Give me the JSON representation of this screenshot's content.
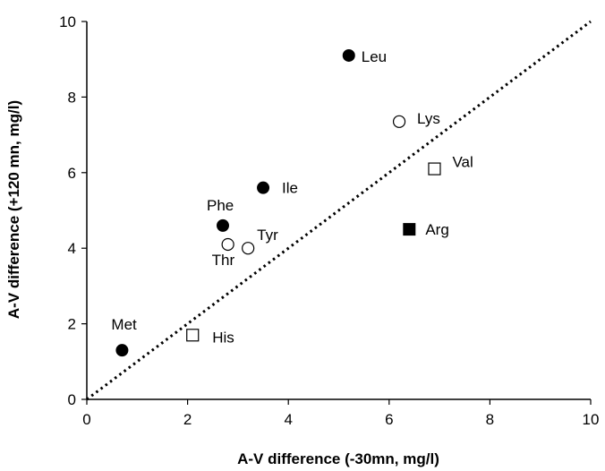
{
  "chart_data": {
    "type": "scatter",
    "xlabel": "A-V difference (-30mn, mg/l)",
    "ylabel": "A-V  difference (+120 mn, mg/l)",
    "xlim": [
      0,
      10
    ],
    "ylim": [
      0,
      10
    ],
    "x_ticks": [
      "0",
      "2",
      "4",
      "6",
      "8",
      "10"
    ],
    "y_ticks": [
      "0",
      "2",
      "4",
      "6",
      "8",
      "10"
    ],
    "grid": false,
    "legend": "none",
    "reference_line": {
      "style": "dotted",
      "from": [
        0,
        0
      ],
      "to": [
        10,
        10
      ],
      "color": "#000000"
    },
    "points": [
      {
        "label": "Leu",
        "x": 5.2,
        "y": 9.1,
        "marker": "filled-circle"
      },
      {
        "label": "Lys",
        "x": 6.2,
        "y": 7.35,
        "marker": "open-circle"
      },
      {
        "label": "Val",
        "x": 6.9,
        "y": 6.1,
        "marker": "open-square"
      },
      {
        "label": "Ile",
        "x": 3.5,
        "y": 5.6,
        "marker": "filled-circle"
      },
      {
        "label": "Phe",
        "x": 2.7,
        "y": 4.6,
        "marker": "filled-circle"
      },
      {
        "label": "Arg",
        "x": 6.4,
        "y": 4.5,
        "marker": "filled-square"
      },
      {
        "label": "Tyr",
        "x": 3.2,
        "y": 4.0,
        "marker": "open-circle"
      },
      {
        "label": "Thr",
        "x": 2.8,
        "y": 4.1,
        "marker": "open-circle"
      },
      {
        "label": "Met",
        "x": 0.7,
        "y": 1.3,
        "marker": "filled-circle"
      },
      {
        "label": "His",
        "x": 2.1,
        "y": 1.7,
        "marker": "open-square"
      }
    ]
  }
}
